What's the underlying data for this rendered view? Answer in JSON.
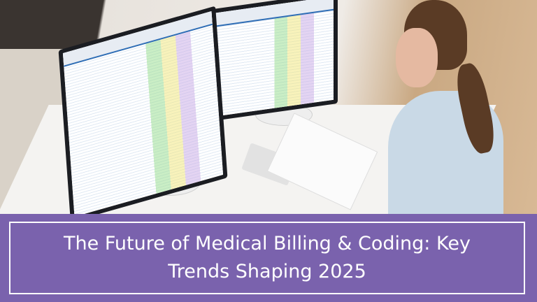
{
  "banner": {
    "title_line1": "The Future of Medical Billing & Coding: Key",
    "title_line2": "Trends Shaping 2025",
    "background_color": "#7a62ad",
    "text_color": "#ffffff"
  }
}
